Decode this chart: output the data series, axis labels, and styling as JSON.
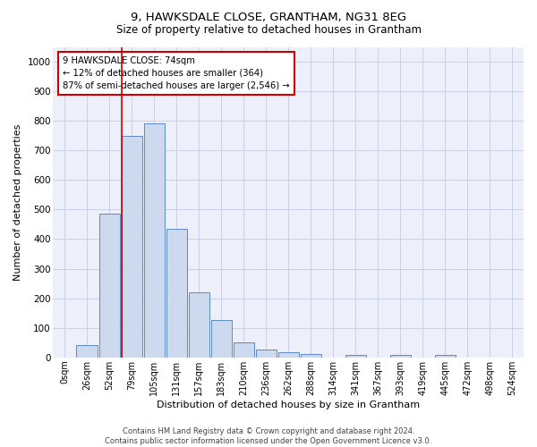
{
  "title": "9, HAWKSDALE CLOSE, GRANTHAM, NG31 8EG",
  "subtitle": "Size of property relative to detached houses in Grantham",
  "xlabel": "Distribution of detached houses by size in Grantham",
  "ylabel": "Number of detached properties",
  "bar_labels": [
    "0sqm",
    "26sqm",
    "52sqm",
    "79sqm",
    "105sqm",
    "131sqm",
    "157sqm",
    "183sqm",
    "210sqm",
    "236sqm",
    "262sqm",
    "288sqm",
    "314sqm",
    "341sqm",
    "367sqm",
    "393sqm",
    "419sqm",
    "445sqm",
    "472sqm",
    "498sqm",
    "524sqm"
  ],
  "bar_values": [
    0,
    42,
    485,
    750,
    790,
    435,
    220,
    127,
    52,
    28,
    16,
    10,
    0,
    8,
    0,
    7,
    0,
    7,
    0,
    0,
    0
  ],
  "bar_color": "#ccd9ee",
  "bar_edge_color": "#5b8ac5",
  "grid_color": "#c8d0e8",
  "background_color": "#edf0fb",
  "vline_color": "#cc0000",
  "annotation_text": "9 HAWKSDALE CLOSE: 74sqm\n← 12% of detached houses are smaller (364)\n87% of semi-detached houses are larger (2,546) →",
  "annotation_box_color": "#ffffff",
  "annotation_box_edge": "#cc0000",
  "footer_line1": "Contains HM Land Registry data © Crown copyright and database right 2024.",
  "footer_line2": "Contains public sector information licensed under the Open Government Licence v3.0.",
  "ylim": [
    0,
    1050
  ],
  "yticks": [
    0,
    100,
    200,
    300,
    400,
    500,
    600,
    700,
    800,
    900,
    1000
  ]
}
